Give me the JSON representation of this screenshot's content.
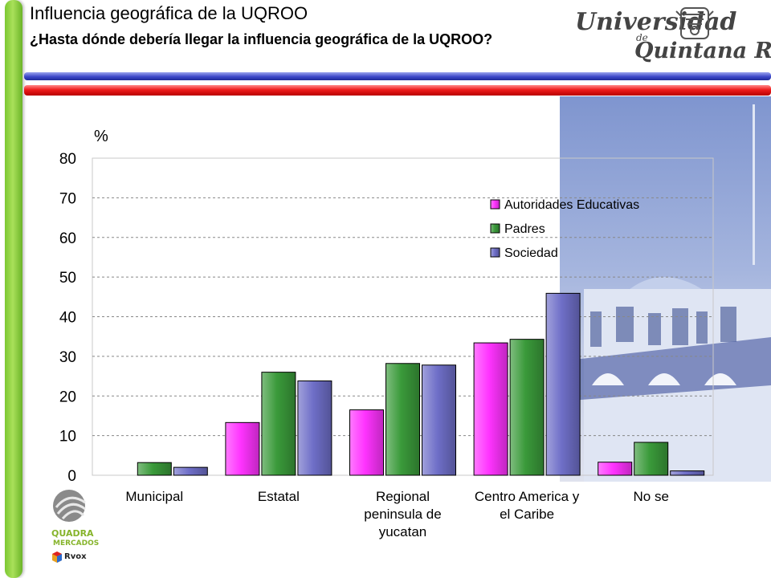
{
  "slide": {
    "title": "Influencia geográfica de la UQROO",
    "subtitle": "¿Hasta dónde debería llegar la influencia geográfica de la UQROO?"
  },
  "logo": {
    "line1": "Universidad",
    "line2": "de",
    "line3": "Quintana Roo"
  },
  "brand": {
    "line1": "QUADRA",
    "line2": "MERCADOS",
    "line3": "Rvox"
  },
  "colors": {
    "accent_green": "#8ccf3e",
    "stripe_blue": "#2e3bb8",
    "stripe_red": "#e41a1a",
    "series_pink": "#ff33ff",
    "series_green": "#3a9a3a",
    "series_blue": "#6f6fc8"
  },
  "chart_data": {
    "type": "bar",
    "ylabel": "%",
    "ylim": [
      0,
      80
    ],
    "yticks": [
      0,
      10,
      20,
      30,
      40,
      50,
      60,
      70,
      80
    ],
    "grid": "horizontal dashed",
    "legend_position": "top-right",
    "categories": [
      [
        "Municipal"
      ],
      [
        "Estatal"
      ],
      [
        "Regional",
        "peninsula de",
        "yucatan"
      ],
      [
        "Centro America y",
        "el Caribe"
      ],
      [
        "No se"
      ]
    ],
    "series": [
      {
        "name": "Autoridades Educativas",
        "color": "#ff33ff",
        "values": [
          0,
          13.3,
          16.5,
          33.4,
          3.3
        ]
      },
      {
        "name": "Padres",
        "color": "#3a9a3a",
        "values": [
          3.2,
          26.0,
          28.2,
          34.3,
          8.3
        ]
      },
      {
        "name": "Sociedad",
        "color": "#6f6fc8",
        "values": [
          2.0,
          23.8,
          27.8,
          45.9,
          1.1
        ]
      }
    ]
  }
}
